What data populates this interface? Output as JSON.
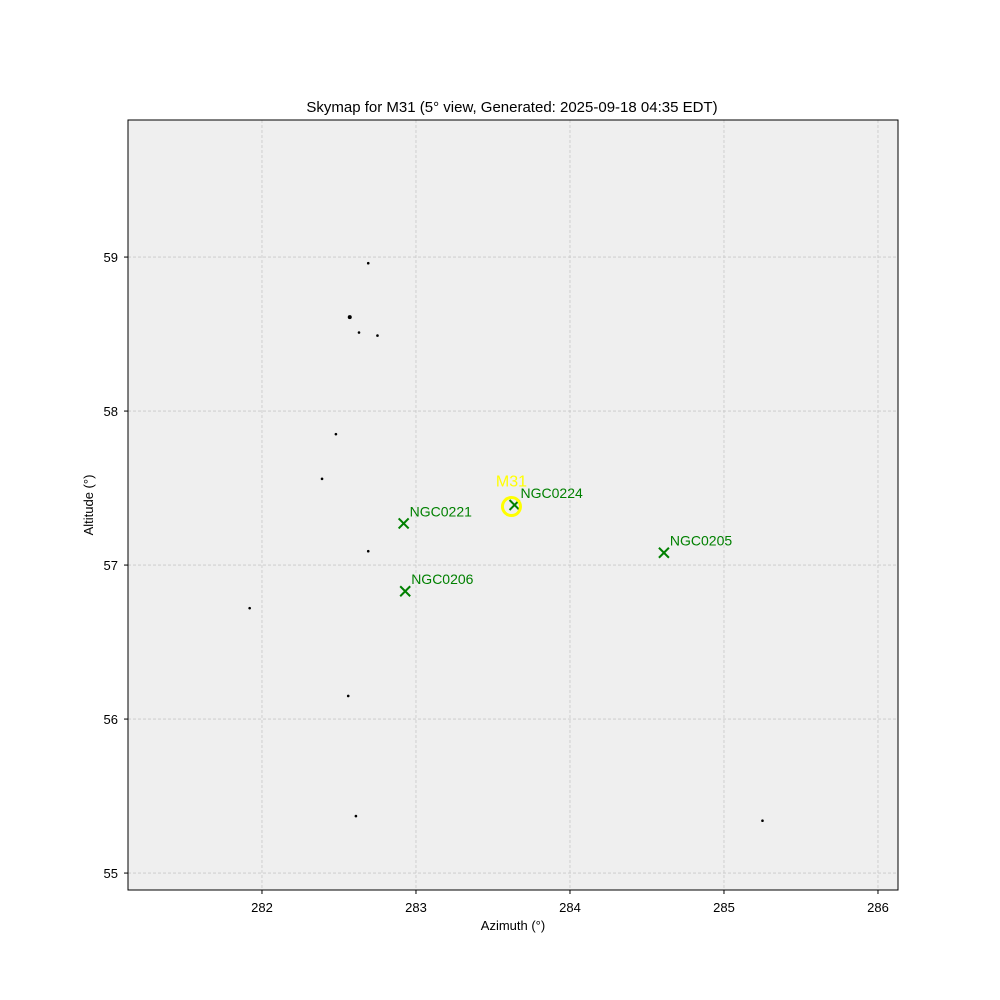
{
  "chart_data": {
    "type": "scatter",
    "title": "Skymap for M31 (5° view, Generated: 2025-09-18 04:35 EDT)",
    "xlabel": "Azimuth (°)",
    "ylabel": "Altitude (°)",
    "xlim": [
      281.13,
      286.13
    ],
    "ylim": [
      54.89,
      59.89
    ],
    "xticks": [
      282,
      283,
      284,
      285,
      286
    ],
    "yticks": [
      55,
      56,
      57,
      58,
      59
    ],
    "grid": true,
    "colors": {
      "background": "#efefef",
      "grid": "#c8c8c8",
      "star": "#000000",
      "galaxy": "#008000",
      "target": "#ffff00",
      "axis": "#000000"
    },
    "series": [
      {
        "marker": "dot",
        "points": [
          {
            "x": 282.69,
            "y": 58.96,
            "size": 1.3
          },
          {
            "x": 282.57,
            "y": 58.61,
            "size": 2.0
          },
          {
            "x": 282.63,
            "y": 58.51,
            "size": 1.3
          },
          {
            "x": 282.75,
            "y": 58.49,
            "size": 1.3
          },
          {
            "x": 282.48,
            "y": 57.85,
            "size": 1.3
          },
          {
            "x": 282.39,
            "y": 57.56,
            "size": 1.3
          },
          {
            "x": 282.69,
            "y": 57.09,
            "size": 1.3
          },
          {
            "x": 281.92,
            "y": 56.72,
            "size": 1.3
          },
          {
            "x": 282.56,
            "y": 56.15,
            "size": 1.3
          },
          {
            "x": 282.61,
            "y": 55.37,
            "size": 1.3
          },
          {
            "x": 285.25,
            "y": 55.34,
            "size": 1.3
          }
        ]
      },
      {
        "marker": "x",
        "points": [
          {
            "x": 283.64,
            "y": 57.39,
            "label": "NGC0224"
          },
          {
            "x": 282.92,
            "y": 57.27,
            "label": "NGC0221"
          },
          {
            "x": 282.93,
            "y": 56.83,
            "label": "NGC0206"
          },
          {
            "x": 284.61,
            "y": 57.08,
            "label": "NGC0205"
          }
        ]
      },
      {
        "marker": "ring",
        "points": [
          {
            "x": 283.62,
            "y": 57.38,
            "label": "M31"
          }
        ]
      }
    ]
  }
}
